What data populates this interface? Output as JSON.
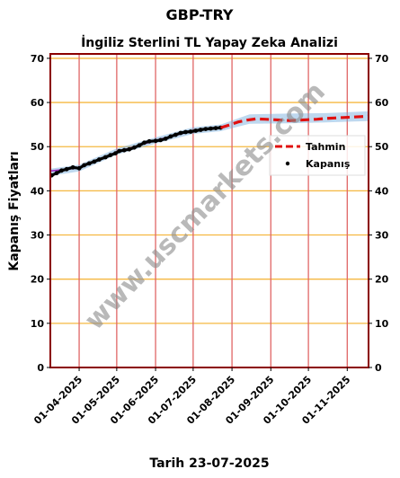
{
  "chart_data": {
    "type": "line",
    "title": "GBP-TRY",
    "subtitle": "İngiliz Sterlini TL Yapay Zeka Analizi",
    "ylabel": "Kapanış Fiyatları",
    "xlabel": "Tarih 23-07-2025",
    "watermark": "www.uscmarkets.com",
    "ylim": [
      0,
      71
    ],
    "xlim": [
      "2025-03-09",
      "2025-11-18"
    ],
    "y_ticks": [
      0,
      10,
      20,
      30,
      40,
      50,
      60,
      70
    ],
    "x_ticks": [
      "2025-04-01",
      "2025-05-01",
      "2025-06-01",
      "2025-07-01",
      "2025-08-01",
      "2025-09-01",
      "2025-10-01",
      "2025-11-01"
    ],
    "x_tick_labels": [
      "01-04-2025",
      "01-05-2025",
      "01-06-2025",
      "01-07-2025",
      "01-08-2025",
      "01-09-2025",
      "01-10-2025",
      "01-11-2025"
    ],
    "grid": true,
    "legend_position": "right",
    "series": [
      {
        "name": "Kapanış",
        "style": "scatter",
        "color": "#000000",
        "points": [
          [
            "2025-03-10",
            43.5
          ],
          [
            "2025-03-14",
            44.0
          ],
          [
            "2025-03-18",
            44.6
          ],
          [
            "2025-03-22",
            44.9
          ],
          [
            "2025-03-27",
            45.3
          ],
          [
            "2025-04-01",
            45.1
          ],
          [
            "2025-04-05",
            45.8
          ],
          [
            "2025-04-09",
            46.2
          ],
          [
            "2025-04-13",
            46.6
          ],
          [
            "2025-04-17",
            47.1
          ],
          [
            "2025-04-22",
            47.6
          ],
          [
            "2025-04-26",
            48.1
          ],
          [
            "2025-04-30",
            48.5
          ],
          [
            "2025-05-03",
            49.0
          ],
          [
            "2025-05-07",
            49.2
          ],
          [
            "2025-05-11",
            49.4
          ],
          [
            "2025-05-15",
            49.8
          ],
          [
            "2025-05-19",
            50.3
          ],
          [
            "2025-05-23",
            50.9
          ],
          [
            "2025-05-27",
            51.2
          ],
          [
            "2025-06-01",
            51.3
          ],
          [
            "2025-06-05",
            51.5
          ],
          [
            "2025-06-09",
            51.8
          ],
          [
            "2025-06-13",
            52.3
          ],
          [
            "2025-06-17",
            52.7
          ],
          [
            "2025-06-21",
            53.1
          ],
          [
            "2025-06-25",
            53.3
          ],
          [
            "2025-06-29",
            53.4
          ],
          [
            "2025-07-03",
            53.6
          ],
          [
            "2025-07-07",
            53.8
          ],
          [
            "2025-07-11",
            54.0
          ],
          [
            "2025-07-15",
            54.1
          ],
          [
            "2025-07-19",
            54.2
          ],
          [
            "2025-07-23",
            54.3
          ]
        ]
      },
      {
        "name": "Tahmin",
        "style": "dashed-line",
        "color": "#e01010",
        "points": [
          [
            "2025-07-23",
            54.3
          ],
          [
            "2025-07-30",
            54.9
          ],
          [
            "2025-08-06",
            55.6
          ],
          [
            "2025-08-13",
            56.0
          ],
          [
            "2025-08-20",
            56.3
          ],
          [
            "2025-08-27",
            56.2
          ],
          [
            "2025-09-03",
            56.1
          ],
          [
            "2025-09-10",
            56.0
          ],
          [
            "2025-09-17",
            55.9
          ],
          [
            "2025-09-24",
            56.0
          ],
          [
            "2025-10-01",
            56.1
          ],
          [
            "2025-10-08",
            56.2
          ],
          [
            "2025-10-15",
            56.4
          ],
          [
            "2025-10-22",
            56.5
          ],
          [
            "2025-10-29",
            56.6
          ],
          [
            "2025-11-05",
            56.7
          ],
          [
            "2025-11-12",
            56.8
          ],
          [
            "2025-11-18",
            56.9
          ]
        ]
      }
    ],
    "band": {
      "color": "#6fa8dc",
      "upper": [
        [
          "2025-03-09",
          45.0
        ],
        [
          "2025-04-01",
          45.9
        ],
        [
          "2025-05-01",
          49.6
        ],
        [
          "2025-06-01",
          52.1
        ],
        [
          "2025-07-01",
          54.4
        ],
        [
          "2025-07-23",
          55.0
        ],
        [
          "2025-08-15",
          57.3
        ],
        [
          "2025-09-15",
          57.5
        ],
        [
          "2025-10-15",
          57.6
        ],
        [
          "2025-11-18",
          58.0
        ]
      ],
      "lower": [
        [
          "2025-03-09",
          43.4
        ],
        [
          "2025-04-01",
          44.4
        ],
        [
          "2025-05-01",
          48.2
        ],
        [
          "2025-06-01",
          50.7
        ],
        [
          "2025-07-01",
          52.9
        ],
        [
          "2025-07-23",
          53.5
        ],
        [
          "2025-08-15",
          55.2
        ],
        [
          "2025-09-15",
          55.3
        ],
        [
          "2025-10-15",
          55.5
        ],
        [
          "2025-11-18",
          55.8
        ]
      ]
    },
    "fit_line": {
      "color": "#9b30c0",
      "points": [
        [
          "2025-03-09",
          44.5
        ],
        [
          "2025-04-01",
          45.2
        ],
        [
          "2025-05-01",
          48.8
        ],
        [
          "2025-06-01",
          51.4
        ],
        [
          "2025-07-01",
          53.6
        ],
        [
          "2025-07-23",
          54.3
        ]
      ]
    }
  }
}
